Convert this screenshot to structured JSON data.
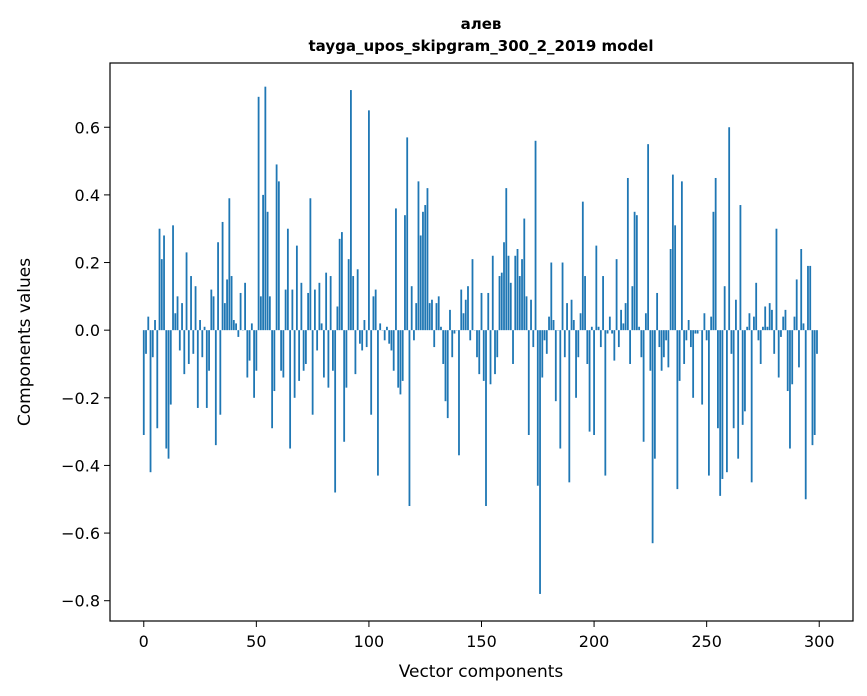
{
  "chart_data": {
    "type": "bar",
    "title": "алев",
    "subtitle": "tayga_upos_skipgram_300_2_2019 model",
    "xlabel": "Vector components",
    "ylabel": "Components values",
    "xlim": [
      -15,
      315
    ],
    "ylim": [
      -0.86,
      0.79
    ],
    "xticks": [
      0,
      50,
      100,
      150,
      200,
      250,
      300
    ],
    "yticks": [
      -0.8,
      -0.6,
      -0.4,
      -0.2,
      0.0,
      0.2,
      0.4,
      0.6
    ],
    "ytick_labels": [
      "−0.8",
      "−0.6",
      "−0.4",
      "−0.2",
      "0.0",
      "0.2",
      "0.4",
      "0.6"
    ],
    "grid": false,
    "bar_color": "#1f77b4",
    "values": [
      -0.31,
      -0.07,
      0.04,
      -0.42,
      -0.08,
      0.03,
      -0.29,
      0.3,
      0.21,
      0.28,
      -0.35,
      -0.38,
      -0.22,
      0.31,
      0.05,
      0.1,
      -0.06,
      0.08,
      -0.13,
      0.23,
      -0.1,
      0.16,
      -0.07,
      0.13,
      -0.23,
      0.03,
      -0.08,
      0.01,
      -0.23,
      -0.12,
      0.12,
      0.1,
      -0.34,
      0.26,
      -0.25,
      0.32,
      0.08,
      0.15,
      0.39,
      0.16,
      0.03,
      0.02,
      -0.02,
      0.11,
      0.0,
      0.14,
      -0.14,
      -0.09,
      0.02,
      -0.2,
      -0.12,
      0.69,
      0.1,
      0.4,
      0.72,
      0.35,
      0.1,
      -0.29,
      -0.18,
      0.49,
      0.44,
      -0.12,
      -0.14,
      0.12,
      0.3,
      -0.35,
      0.12,
      -0.2,
      0.25,
      -0.15,
      0.14,
      -0.12,
      -0.1,
      0.11,
      0.39,
      -0.25,
      0.12,
      -0.06,
      0.14,
      0.02,
      -0.14,
      0.17,
      -0.17,
      0.16,
      -0.12,
      -0.48,
      0.07,
      0.27,
      0.29,
      -0.33,
      -0.17,
      0.21,
      0.71,
      0.16,
      -0.13,
      0.18,
      -0.04,
      -0.06,
      0.03,
      -0.05,
      0.65,
      -0.25,
      0.1,
      0.12,
      -0.43,
      0.02,
      0.0,
      -0.03,
      0.01,
      -0.04,
      -0.06,
      -0.12,
      0.36,
      -0.17,
      -0.19,
      -0.15,
      0.34,
      0.57,
      -0.52,
      0.13,
      -0.03,
      0.08,
      0.44,
      0.28,
      0.35,
      0.37,
      0.42,
      0.08,
      0.09,
      -0.05,
      0.08,
      0.1,
      0.01,
      -0.1,
      -0.21,
      -0.26,
      0.06,
      -0.08,
      -0.01,
      0.0,
      -0.37,
      0.12,
      0.05,
      0.09,
      0.13,
      -0.03,
      0.21,
      0.0,
      -0.08,
      -0.13,
      0.11,
      -0.15,
      -0.52,
      0.11,
      -0.16,
      0.22,
      -0.13,
      -0.08,
      0.16,
      0.17,
      0.26,
      0.42,
      0.22,
      0.14,
      -0.1,
      0.22,
      0.24,
      0.16,
      0.21,
      0.33,
      0.1,
      -0.31,
      0.09,
      -0.05,
      0.56,
      -0.46,
      -0.78,
      -0.14,
      -0.03,
      -0.07,
      0.04,
      0.2,
      0.03,
      -0.21,
      0.0,
      -0.35,
      0.2,
      -0.08,
      0.08,
      -0.45,
      0.09,
      0.03,
      -0.2,
      -0.08,
      0.05,
      0.38,
      0.16,
      -0.1,
      -0.3,
      0.01,
      -0.31,
      0.25,
      0.01,
      -0.05,
      0.16,
      -0.43,
      -0.01,
      0.04,
      -0.01,
      -0.09,
      0.21,
      -0.05,
      0.06,
      0.02,
      0.08,
      0.45,
      -0.1,
      0.13,
      0.35,
      0.34,
      0.01,
      -0.08,
      -0.33,
      0.05,
      0.55,
      -0.12,
      -0.63,
      -0.38,
      0.11,
      -0.05,
      -0.12,
      -0.08,
      -0.03,
      -0.11,
      0.24,
      0.46,
      0.31,
      -0.47,
      -0.15,
      0.44,
      -0.1,
      -0.03,
      0.03,
      -0.05,
      -0.2,
      -0.01,
      -0.01,
      0.0,
      -0.22,
      0.05,
      -0.03,
      -0.43,
      0.04,
      0.35,
      0.45,
      -0.29,
      -0.49,
      -0.44,
      0.13,
      -0.42,
      0.6,
      -0.07,
      -0.29,
      0.09,
      -0.38,
      0.37,
      -0.28,
      -0.24,
      0.01,
      0.05,
      -0.45,
      0.04,
      0.14,
      -0.03,
      -0.1,
      0.01,
      0.07,
      0.01,
      0.08,
      0.06,
      -0.07,
      0.3,
      -0.14,
      -0.02,
      0.04,
      0.06,
      -0.18,
      -0.35,
      -0.16,
      0.04,
      0.15,
      -0.11,
      0.24,
      0.02,
      -0.5,
      0.19,
      0.19,
      -0.34,
      -0.31,
      -0.07
    ]
  }
}
